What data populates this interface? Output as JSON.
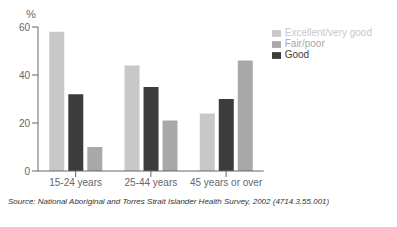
{
  "chart_data": {
    "type": "bar",
    "categories": [
      "15-24 years",
      "25-44 years",
      "45 years or over"
    ],
    "series": [
      {
        "name": "Excellent/very good",
        "color": "#c8c8c8",
        "values": [
          58,
          44,
          24
        ]
      },
      {
        "name": "Good",
        "color": "#3c3c3c",
        "values": [
          32,
          35,
          30
        ]
      },
      {
        "name": "Fair/poor",
        "color": "#a8a8a8",
        "values": [
          10,
          21,
          46
        ]
      }
    ],
    "y_label": "%",
    "ylim": [
      0,
      60
    ],
    "yticks": [
      0,
      20,
      40,
      60
    ],
    "grid": false,
    "legend": "upper right",
    "annotations": [
      "Source: National Aboriginal and Torres Strait Islander Health Survey, 2002 (4714.3.55.001)"
    ]
  }
}
